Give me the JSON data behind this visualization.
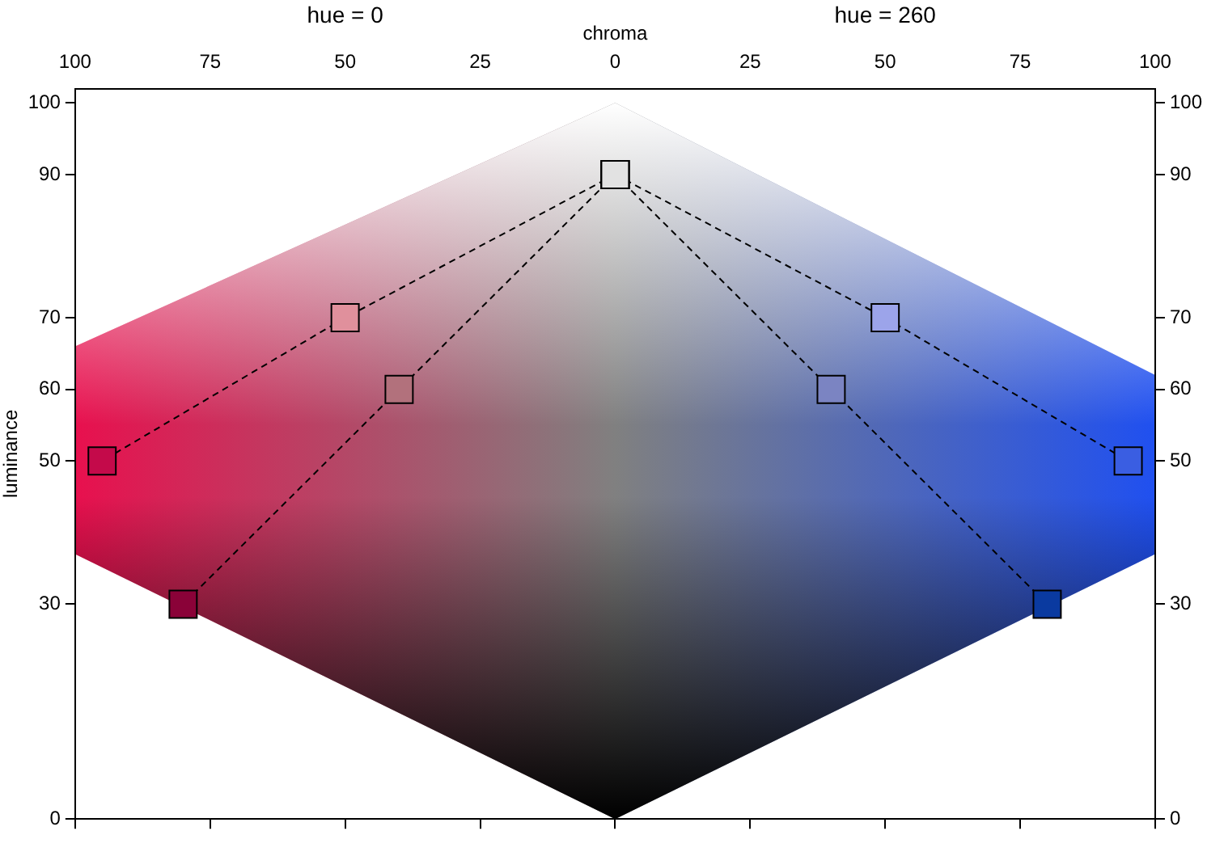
{
  "chart_data": {
    "type": "line",
    "xlabel": "chroma",
    "ylabel": "luminance",
    "annotations": [
      "hue = 0",
      "hue = 260"
    ],
    "xlim": [
      -100,
      100
    ],
    "xticks": [
      {
        "value": -100,
        "label": "100"
      },
      {
        "value": -75,
        "label": "75"
      },
      {
        "value": -50,
        "label": "50"
      },
      {
        "value": -25,
        "label": "25"
      },
      0,
      25,
      50,
      75,
      100
    ],
    "ylim": [
      0,
      102
    ],
    "yticks": [
      0,
      30,
      50,
      60,
      70,
      90,
      100
    ],
    "y2lim": [
      0,
      102
    ],
    "y2ticks": [
      0,
      30,
      50,
      60,
      70,
      90,
      100
    ],
    "marker": "square",
    "line_style": "dashed",
    "grid": false,
    "legend": false,
    "series": [
      {
        "color": "#000000",
        "x": [
          0,
          -50,
          -95
        ],
        "values": [
          90,
          70,
          50
        ],
        "colors": [
          "#e2e2e2",
          "#e0909c",
          "#c40a4a"
        ]
      },
      {
        "color": "#000000",
        "x": [
          0,
          -40,
          -80
        ],
        "values": [
          90,
          60,
          30
        ],
        "colors": [
          "#e2e2e2",
          "#b2717c",
          "#8a0238"
        ]
      },
      {
        "color": "#000000",
        "x": [
          0,
          50,
          95
        ],
        "values": [
          90,
          70,
          50
        ],
        "colors": [
          "#e2e2e2",
          "#9ca4ea",
          "#3a5ee2"
        ]
      },
      {
        "color": "#000000",
        "x": [
          0,
          40,
          80
        ],
        "values": [
          90,
          60,
          30
        ],
        "colors": [
          "#e2e2e2",
          "#7b84c2",
          "#0a3aa0"
        ]
      }
    ]
  }
}
